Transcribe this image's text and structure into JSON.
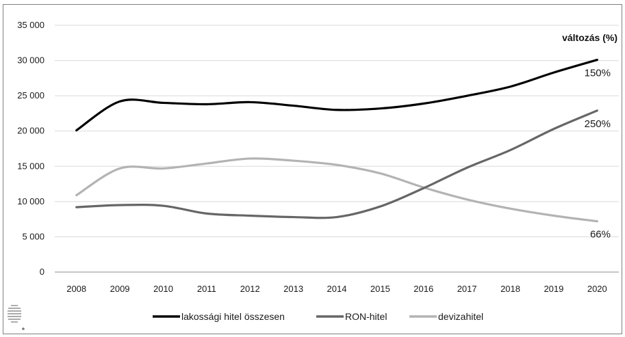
{
  "chart_data": {
    "type": "line",
    "categories": [
      "2008",
      "2009",
      "2010",
      "2011",
      "2012",
      "2013",
      "2014",
      "2015",
      "2016",
      "2017",
      "2018",
      "2019",
      "2020"
    ],
    "ylim": [
      0,
      35000
    ],
    "yticks": [
      0,
      5000,
      10000,
      15000,
      20000,
      25000,
      30000,
      35000
    ],
    "ytick_labels": [
      "0",
      "5 000",
      "10 000",
      "15 000",
      "20 000",
      "25 000",
      "30 000",
      "35 000"
    ],
    "grid": true,
    "legend_position": "bottom",
    "annotation_title": "változás (%)",
    "series": [
      {
        "name": "lakossági hitel összesen",
        "color": "#000000",
        "values": [
          20100,
          24200,
          24000,
          23800,
          24100,
          23600,
          23000,
          23200,
          23900,
          25000,
          26300,
          28300,
          30100
        ],
        "change_label": "150%"
      },
      {
        "name": "RON-hitel",
        "color": "#666666",
        "values": [
          9200,
          9500,
          9400,
          8300,
          8000,
          7800,
          7800,
          9300,
          11900,
          14800,
          17300,
          20300,
          22900
        ],
        "change_label": "250%"
      },
      {
        "name": "devizahitel",
        "color": "#b3b3b3",
        "values": [
          10900,
          14700,
          14700,
          15400,
          16100,
          15800,
          15200,
          14000,
          12000,
          10300,
          9000,
          8000,
          7200
        ],
        "change_label": "66%"
      }
    ]
  },
  "logo": {
    "name": "institution-logo"
  }
}
